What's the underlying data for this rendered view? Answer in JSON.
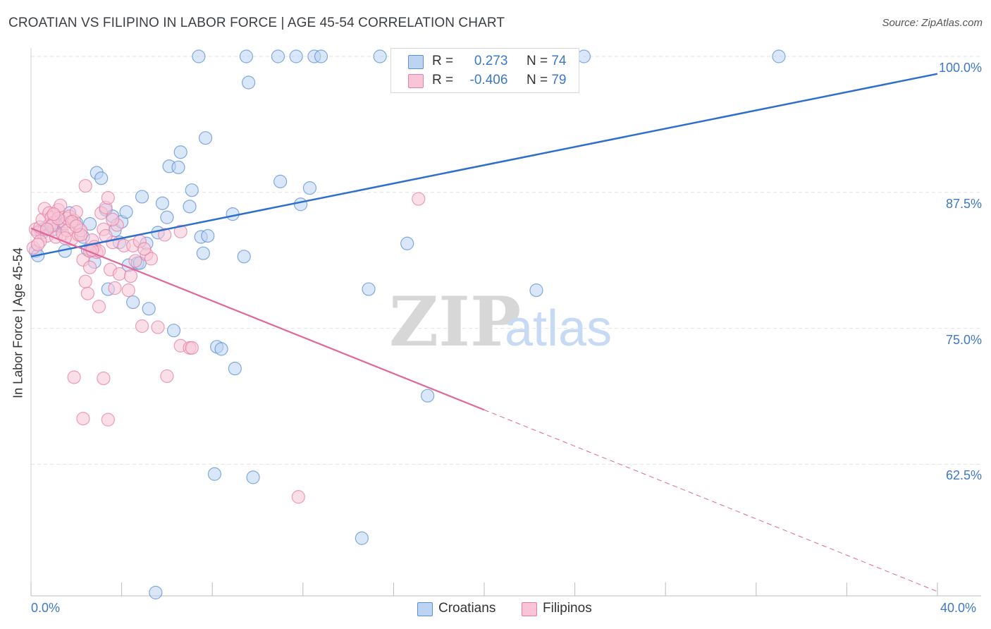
{
  "title": "CROATIAN VS FILIPINO IN LABOR FORCE | AGE 45-54 CORRELATION CHART",
  "source": "Source: ZipAtlas.com",
  "watermark": {
    "zip": "ZIP",
    "atlas": "atlas"
  },
  "legend": {
    "rows": [
      {
        "r_label": "R =",
        "r_value": "0.273",
        "n_label": "N =",
        "n_value": "74",
        "color": "#5b8fd6",
        "fill": "#bcd3f2"
      },
      {
        "r_label": "R =",
        "r_value": "-0.406",
        "n_label": "N =",
        "n_value": "79",
        "color": "#e77fa3",
        "fill": "#f8c4d6"
      }
    ]
  },
  "bottom_legend": [
    {
      "label": "Croatians",
      "color": "#5b8fd6",
      "fill": "#bcd3f2"
    },
    {
      "label": "Filipinos",
      "color": "#e77fa3",
      "fill": "#f8c4d6"
    }
  ],
  "chart_data": {
    "type": "scatter",
    "title": "CROATIAN VS FILIPINO IN LABOR FORCE | AGE 45-54 CORRELATION CHART",
    "xlabel": "",
    "ylabel": "In Labor Force | Age 45-54",
    "xlim": [
      0,
      40
    ],
    "ylim": [
      51,
      102
    ],
    "x_tick_labels": [
      "0.0%",
      "40.0%"
    ],
    "y_ticks": [
      62.5,
      75.0,
      87.5,
      100.0
    ],
    "y_tick_labels": [
      "62.5%",
      "75.0%",
      "87.5%",
      "100.0%"
    ],
    "grid": true,
    "series": [
      {
        "name": "Croatians",
        "color": "#5b8fd6",
        "fill": "#bcd3f2",
        "trend": {
          "x": [
            0,
            40
          ],
          "y": [
            81.6,
            98.4
          ],
          "dashed_from": null
        },
        "points": [
          [
            0.2,
            82.1
          ],
          [
            0.3,
            81.7
          ],
          [
            0.4,
            84.0
          ],
          [
            0.6,
            84.2
          ],
          [
            0.8,
            84.5
          ],
          [
            1.0,
            84.1
          ],
          [
            1.2,
            84.4
          ],
          [
            1.4,
            84.6
          ],
          [
            1.5,
            82.1
          ],
          [
            1.7,
            85.6
          ],
          [
            2.0,
            84.7
          ],
          [
            2.3,
            83.4
          ],
          [
            2.5,
            82.2
          ],
          [
            2.6,
            84.6
          ],
          [
            2.8,
            81.1
          ],
          [
            2.9,
            89.3
          ],
          [
            3.1,
            88.8
          ],
          [
            3.3,
            85.9
          ],
          [
            3.4,
            78.6
          ],
          [
            3.6,
            85.3
          ],
          [
            3.7,
            84.0
          ],
          [
            3.9,
            82.9
          ],
          [
            4.0,
            84.8
          ],
          [
            4.2,
            85.7
          ],
          [
            4.3,
            80.8
          ],
          [
            4.5,
            77.4
          ],
          [
            4.7,
            81.0
          ],
          [
            4.9,
            87.1
          ],
          [
            5.1,
            82.8
          ],
          [
            5.2,
            76.8
          ],
          [
            5.6,
            83.8
          ],
          [
            5.8,
            86.5
          ],
          [
            6.0,
            85.2
          ],
          [
            6.1,
            89.9
          ],
          [
            6.3,
            74.8
          ],
          [
            6.5,
            89.8
          ],
          [
            6.6,
            91.2
          ],
          [
            7.0,
            86.2
          ],
          [
            7.1,
            87.7
          ],
          [
            7.4,
            100.0
          ],
          [
            7.5,
            83.4
          ],
          [
            7.6,
            81.9
          ],
          [
            7.8,
            83.5
          ],
          [
            7.7,
            92.5
          ],
          [
            8.2,
            73.3
          ],
          [
            8.4,
            73.1
          ],
          [
            8.9,
            85.5
          ],
          [
            9.0,
            71.3
          ],
          [
            9.4,
            81.6
          ],
          [
            9.5,
            100.0
          ],
          [
            9.6,
            97.6
          ],
          [
            10.9,
            100.0
          ],
          [
            11.0,
            88.5
          ],
          [
            11.7,
            100.0
          ],
          [
            11.9,
            86.4
          ],
          [
            12.3,
            87.9
          ],
          [
            12.5,
            100.0
          ],
          [
            12.8,
            100.0
          ],
          [
            14.9,
            78.6
          ],
          [
            15.4,
            100.0
          ],
          [
            16.6,
            82.8
          ],
          [
            17.5,
            68.8
          ],
          [
            22.3,
            78.5
          ],
          [
            22.2,
            100.0
          ],
          [
            23.9,
            98.1
          ],
          [
            24.4,
            100.0
          ],
          [
            33.0,
            100.0
          ],
          [
            8.1,
            61.6
          ],
          [
            9.8,
            61.3
          ],
          [
            14.6,
            55.7
          ],
          [
            5.5,
            50.7
          ],
          [
            4.8,
            81.0
          ],
          [
            1.3,
            84.9
          ],
          [
            0.5,
            83.8
          ]
        ]
      },
      {
        "name": "Filipinos",
        "color": "#e77fa3",
        "fill": "#f8c4d6",
        "trend": {
          "x": [
            0,
            20
          ],
          "y": [
            84.2,
            67.5
          ],
          "dashed_to": [
            40,
            50.8
          ]
        },
        "points": [
          [
            0.1,
            82.4
          ],
          [
            0.2,
            84.1
          ],
          [
            0.3,
            83.8
          ],
          [
            0.4,
            84.3
          ],
          [
            0.5,
            85.0
          ],
          [
            0.6,
            86.0
          ],
          [
            0.7,
            83.5
          ],
          [
            0.8,
            85.6
          ],
          [
            0.9,
            85.2
          ],
          [
            1.0,
            84.7
          ],
          [
            1.1,
            83.4
          ],
          [
            1.2,
            85.9
          ],
          [
            1.3,
            86.3
          ],
          [
            1.4,
            83.7
          ],
          [
            1.5,
            84.6
          ],
          [
            1.6,
            85.1
          ],
          [
            1.7,
            85.3
          ],
          [
            1.8,
            83.2
          ],
          [
            1.9,
            84.9
          ],
          [
            2.0,
            85.7
          ],
          [
            2.1,
            83.6
          ],
          [
            2.2,
            84.0
          ],
          [
            2.3,
            81.3
          ],
          [
            2.4,
            88.1
          ],
          [
            2.5,
            78.2
          ],
          [
            2.6,
            80.6
          ],
          [
            2.7,
            83.1
          ],
          [
            2.8,
            82.5
          ],
          [
            2.9,
            82.0
          ],
          [
            3.0,
            77.0
          ],
          [
            3.1,
            85.6
          ],
          [
            3.2,
            84.1
          ],
          [
            3.3,
            86.1
          ],
          [
            3.4,
            87.0
          ],
          [
            3.5,
            80.4
          ],
          [
            3.6,
            82.9
          ],
          [
            3.7,
            78.7
          ],
          [
            3.8,
            84.5
          ],
          [
            3.9,
            80.0
          ],
          [
            4.1,
            82.6
          ],
          [
            4.3,
            78.5
          ],
          [
            4.5,
            82.6
          ],
          [
            4.6,
            81.2
          ],
          [
            4.9,
            75.2
          ],
          [
            5.1,
            81.8
          ],
          [
            5.3,
            81.4
          ],
          [
            5.6,
            75.1
          ],
          [
            5.9,
            83.6
          ],
          [
            6.0,
            70.6
          ],
          [
            6.6,
            73.4
          ],
          [
            7.0,
            73.2
          ],
          [
            7.1,
            73.2
          ],
          [
            1.9,
            70.5
          ],
          [
            3.2,
            70.4
          ],
          [
            2.3,
            66.7
          ],
          [
            3.4,
            66.6
          ],
          [
            11.8,
            59.5
          ],
          [
            17.1,
            86.9
          ],
          [
            2.4,
            79.3
          ],
          [
            0.9,
            84.4
          ],
          [
            1.6,
            84.0
          ],
          [
            2.2,
            83.6
          ],
          [
            3.0,
            82.1
          ],
          [
            0.4,
            83.0
          ],
          [
            1.2,
            85.1
          ],
          [
            1.8,
            84.8
          ],
          [
            2.6,
            82.1
          ],
          [
            4.4,
            79.8
          ],
          [
            6.6,
            83.9
          ],
          [
            3.6,
            85.0
          ],
          [
            4.8,
            83.0
          ],
          [
            1.0,
            85.5
          ],
          [
            0.7,
            84.1
          ],
          [
            1.5,
            83.3
          ],
          [
            2.7,
            82.2
          ],
          [
            3.3,
            83.5
          ],
          [
            5.0,
            82.3
          ],
          [
            0.3,
            82.7
          ],
          [
            2.0,
            84.4
          ]
        ]
      }
    ]
  }
}
